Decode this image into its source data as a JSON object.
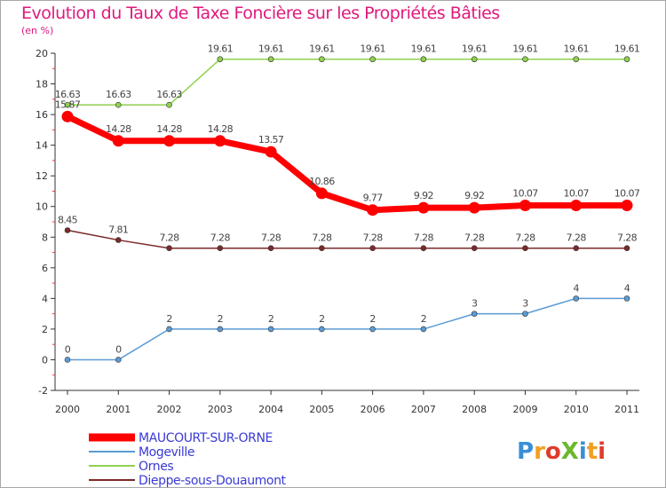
{
  "chart_data": {
    "type": "line",
    "title": "Evolution du Taux de Taxe Foncière sur les Propriétés Bâties",
    "ylabel": "(en %)",
    "ylim": [
      -2,
      20
    ],
    "yticks": [
      -2,
      0,
      2,
      4,
      6,
      8,
      10,
      12,
      14,
      16,
      18,
      20
    ],
    "categories": [
      "2000",
      "2001",
      "2002",
      "2003",
      "2004",
      "2005",
      "2006",
      "2007",
      "2008",
      "2009",
      "2010",
      "2011"
    ],
    "series": [
      {
        "name": "MAUCOURT-SUR-ORNE",
        "color": "#ff0000",
        "values": [
          15.87,
          14.28,
          14.28,
          14.28,
          13.57,
          10.86,
          9.77,
          9.92,
          9.92,
          10.07,
          10.07,
          10.07
        ],
        "labels": [
          "15.87",
          "14.28",
          "14.28",
          "14.28",
          "13.57",
          "10.86",
          "9.77",
          "9.92",
          "9.92",
          "10.07",
          "10.07",
          "10.07"
        ]
      },
      {
        "name": "Mogeville",
        "color": "#5b9bd5",
        "values": [
          0,
          0,
          2,
          2,
          2,
          2,
          2,
          2,
          3,
          3,
          4,
          4
        ],
        "labels": [
          "0",
          "0",
          "2",
          "2",
          "2",
          "2",
          "2",
          "2",
          "3",
          "3",
          "4",
          "4"
        ]
      },
      {
        "name": "Ornes",
        "color": "#8fd14f",
        "values": [
          16.63,
          16.63,
          16.63,
          19.61,
          19.61,
          19.61,
          19.61,
          19.61,
          19.61,
          19.61,
          19.61,
          19.61
        ],
        "labels": [
          "16.63",
          "16.63",
          "16.63",
          "19.61",
          "19.61",
          "19.61",
          "19.61",
          "19.61",
          "19.61",
          "19.61",
          "19.61",
          "19.61"
        ]
      },
      {
        "name": "Dieppe-sous-Douaumont",
        "color": "#7b2a2a",
        "values": [
          8.45,
          7.81,
          7.28,
          7.28,
          7.28,
          7.28,
          7.28,
          7.28,
          7.28,
          7.28,
          7.28,
          7.28
        ],
        "labels": [
          "8.45",
          "7.81",
          "7.28",
          "7.28",
          "7.28",
          "7.28",
          "7.28",
          "7.28",
          "7.28",
          "7.28",
          "7.28",
          "7.28"
        ]
      }
    ],
    "legend_position": "bottom-left",
    "grid": false
  },
  "logo": {
    "text": "ProXiti"
  }
}
